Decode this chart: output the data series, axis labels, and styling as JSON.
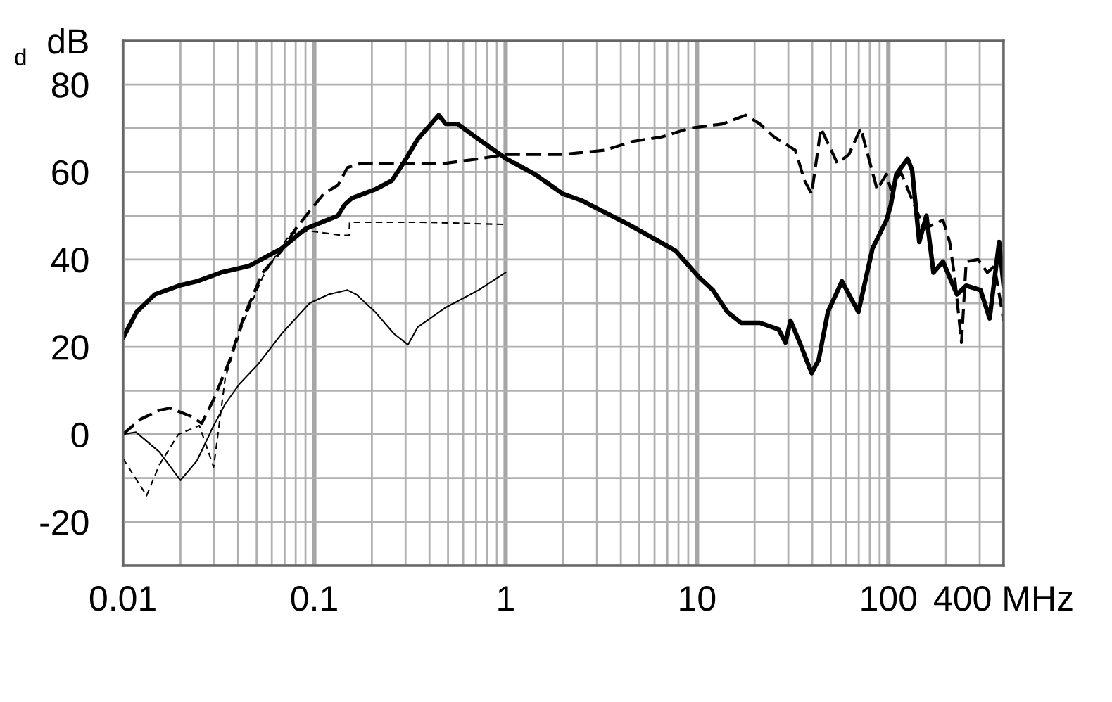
{
  "chart_data": {
    "type": "line",
    "log": "x",
    "grid": true,
    "xlim": [
      0.01,
      400
    ],
    "xticks": [
      0.01,
      {
        "value": 0.02,
        "label": null
      },
      {
        "value": 0.03,
        "label": null
      },
      {
        "value": 0.04,
        "label": null
      },
      {
        "value": 0.05,
        "label": null
      },
      {
        "value": 0.06,
        "label": null
      },
      {
        "value": 0.07,
        "label": null
      },
      {
        "value": 0.08,
        "label": null
      },
      {
        "value": 0.09,
        "label": null
      },
      0.1,
      {
        "value": 0.2,
        "label": null
      },
      {
        "value": 0.3,
        "label": null
      },
      {
        "value": 0.4,
        "label": null
      },
      {
        "value": 0.5,
        "label": null
      },
      {
        "value": 0.6,
        "label": null
      },
      {
        "value": 0.7,
        "label": null
      },
      {
        "value": 0.8,
        "label": null
      },
      {
        "value": 0.9,
        "label": null
      },
      1,
      {
        "value": 2,
        "label": null
      },
      {
        "value": 3,
        "label": null
      },
      {
        "value": 4,
        "label": null
      },
      {
        "value": 5,
        "label": null
      },
      {
        "value": 6,
        "label": null
      },
      {
        "value": 7,
        "label": null
      },
      {
        "value": 8,
        "label": null
      },
      {
        "value": 9,
        "label": null
      },
      10,
      {
        "value": 20,
        "label": null
      },
      {
        "value": 30,
        "label": null
      },
      {
        "value": 40,
        "label": null
      },
      {
        "value": 50,
        "label": null
      },
      {
        "value": 60,
        "label": null
      },
      {
        "value": 70,
        "label": null
      },
      {
        "value": 80,
        "label": null
      },
      {
        "value": 90,
        "label": null
      },
      100,
      {
        "value": 200,
        "label": null
      },
      {
        "value": 300,
        "label": null
      },
      {
        "value": 400,
        "label": "400 MHz"
      }
    ],
    "ylim": [
      -30,
      90
    ],
    "yticks": [
      {
        "value": -30,
        "label": null
      },
      -20,
      {
        "value": -10,
        "label": null
      },
      0,
      {
        "value": 10,
        "label": null
      },
      20,
      {
        "value": 30,
        "label": null
      },
      40,
      {
        "value": 50,
        "label": null
      },
      60,
      {
        "value": 70,
        "label": null
      },
      80,
      {
        "value": 90,
        "label": "dB"
      }
    ],
    "annotations": [
      "d"
    ],
    "series": [
      {
        "color": "#000000",
        "line_style": "solid",
        "x": [
          0.01,
          0.0118,
          0.0147,
          0.0196,
          0.0244,
          0.0325,
          0.0457,
          0.0675,
          0.09,
          0.133,
          0.144,
          0.157,
          0.208,
          0.254,
          0.292,
          0.347,
          0.447,
          0.486,
          0.56,
          0.722,
          1.01,
          1.42,
          1.99,
          2.49,
          4.39,
          7.72,
          10.2,
          12.1,
          14.4,
          17,
          21.3,
          26.7,
          29,
          30.8,
          34.4,
          39.7,
          43.2,
          48.3,
          57.2,
          69.7,
          82.6,
          97.8,
          103,
          110,
          126,
          133,
          145,
          158,
          172,
          193,
          228,
          255,
          303,
          338,
          379,
          400
        ],
        "values": [
          22,
          28,
          32,
          34,
          35,
          37,
          38.5,
          42.5,
          47,
          50,
          52.5,
          54,
          56,
          58,
          62,
          67.5,
          73,
          71,
          71,
          67.5,
          63,
          59.5,
          55,
          53.5,
          48,
          42,
          36,
          33,
          28,
          25.5,
          25.5,
          24,
          21,
          26,
          21,
          14,
          17,
          28,
          35,
          28,
          42.5,
          49,
          52.5,
          59.5,
          63,
          60.5,
          44,
          50,
          37,
          39.5,
          32,
          34,
          33,
          26.5,
          44,
          34
        ]
      },
      {
        "color": "#000000",
        "line_style": "dashed",
        "x": [
          0.01,
          0.0124,
          0.0155,
          0.0176,
          0.0231,
          0.0258,
          0.0298,
          0.0362,
          0.0429,
          0.0538,
          0.0675,
          0.08,
          0.0944,
          0.112,
          0.133,
          0.149,
          0.176,
          0.292,
          0.486,
          0.722,
          1.01,
          1.99,
          3.31,
          4.64,
          6.52,
          9.15,
          13.6,
          18,
          21.3,
          25.3,
          32.6,
          36.5,
          39.7,
          44.4,
          54.1,
          62.2,
          71.7,
          87.3,
          97.7,
          103,
          116,
          141,
          154,
          193,
          209,
          222,
          241,
          255,
          294,
          329,
          358,
          400
        ],
        "values": [
          0,
          3.5,
          5.5,
          6,
          4,
          2.5,
          8,
          17,
          27,
          37,
          42,
          47,
          51,
          55,
          57,
          61,
          62,
          62,
          62,
          63,
          64,
          64,
          65,
          67,
          68,
          70,
          71,
          73,
          71,
          68,
          65,
          58,
          55,
          70,
          62,
          64,
          70,
          56,
          59.5,
          56,
          60,
          51,
          47,
          49,
          44,
          36,
          21,
          39.5,
          40,
          37,
          38.5,
          26
        ]
      },
      {
        "color": "#000000",
        "line_style": "dashed",
        "x": [
          0.01,
          0.0133,
          0.0155,
          0.0195,
          0.0251,
          0.0298,
          0.0343,
          0.0373,
          0.0429,
          0.0538,
          0.0675,
          0.0755,
          0.0946,
          0.14,
          0.152,
          0.153,
          0.366,
          1
        ],
        "values": [
          -5.5,
          -14,
          -7,
          0,
          2,
          -7.5,
          13,
          18,
          26,
          36,
          43,
          46,
          46.5,
          45.5,
          45.5,
          48.5,
          48.5,
          48
        ]
      },
      {
        "color": "#000000",
        "line_style": "solid",
        "x": [
          0.01,
          0.0117,
          0.0155,
          0.02,
          0.0244,
          0.0298,
          0.0343,
          0.0406,
          0.0508,
          0.0675,
          0.0946,
          0.119,
          0.149,
          0.166,
          0.208,
          0.261,
          0.309,
          0.347,
          0.486,
          0.722,
          1
        ],
        "values": [
          0,
          0.5,
          -4,
          -10.5,
          -6,
          2,
          7,
          11.5,
          16,
          23,
          30,
          32,
          33,
          32,
          28,
          23,
          20.5,
          24.5,
          29,
          33,
          37
        ]
      }
    ]
  }
}
